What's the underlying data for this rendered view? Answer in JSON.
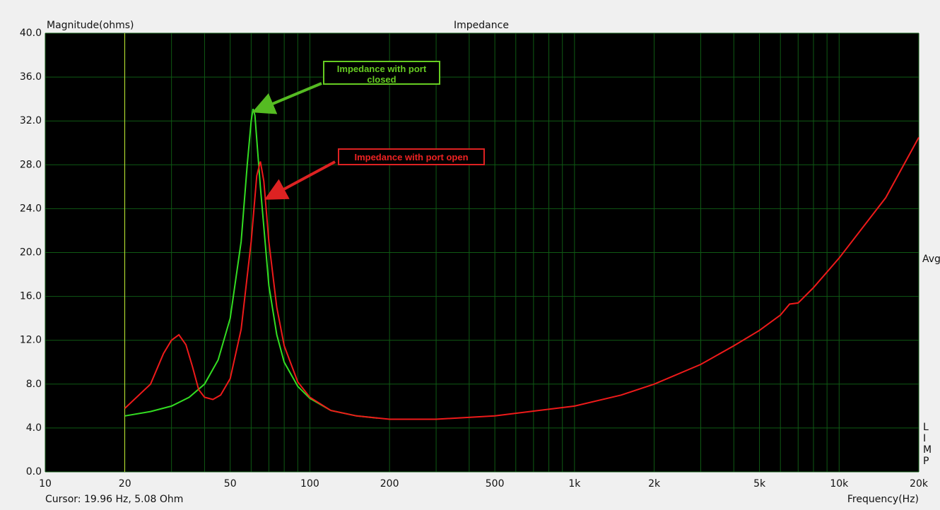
{
  "chart_data": {
    "type": "line",
    "title": "Impedance",
    "ylabel": "Magnitude(ohms)",
    "xlabel": "Frequency(Hz)",
    "cursor_text": "Cursor: 19.96 Hz, 5.08 Ohm",
    "cursor_x": 19.96,
    "cursor_color": "#c8e632",
    "side_text": "Avg",
    "side_letters": [
      "L",
      "I",
      "M",
      "P"
    ],
    "xscale": "log",
    "grid": true,
    "grid_color": "#0f5a14",
    "xlim": [
      10,
      20000
    ],
    "ylim": [
      0,
      40
    ],
    "xticks": [
      10,
      20,
      50,
      100,
      200,
      500,
      {
        "value": 1000,
        "label": "1k"
      },
      {
        "value": 2000,
        "label": "2k"
      },
      {
        "value": 5000,
        "label": "5k"
      },
      {
        "value": 10000,
        "label": "10k"
      },
      {
        "value": 20000,
        "label": "20k"
      }
    ],
    "x_minor_ticks": [
      30,
      40,
      60,
      70,
      80,
      90,
      300,
      400,
      600,
      700,
      800,
      900,
      3000,
      4000,
      6000,
      7000,
      8000,
      9000
    ],
    "yticks": [
      {
        "value": 0,
        "label": "0.0"
      },
      {
        "value": 4,
        "label": "4.0"
      },
      {
        "value": 8,
        "label": "8.0"
      },
      {
        "value": 12,
        "label": "12.0"
      },
      {
        "value": 16,
        "label": "16.0"
      },
      {
        "value": 20,
        "label": "20.0"
      },
      {
        "value": 24,
        "label": "24.0"
      },
      {
        "value": 28,
        "label": "28.0"
      },
      {
        "value": 32,
        "label": "32.0"
      },
      {
        "value": 36,
        "label": "36.0"
      },
      {
        "value": 40,
        "label": "40.0"
      }
    ],
    "series": [
      {
        "name": "Impedance with port closed",
        "color": "#33dd22",
        "x": [
          20,
          25,
          30,
          35,
          40,
          45,
          50,
          55,
          58,
          60,
          61,
          62,
          65,
          70,
          75,
          80,
          90,
          100,
          120,
          150,
          180
        ],
        "values": [
          5.1,
          5.5,
          6.0,
          6.8,
          8.0,
          10.2,
          14,
          21,
          28,
          32,
          33.1,
          32.5,
          26,
          17,
          12.5,
          10.0,
          7.8,
          6.7,
          5.6,
          5.1,
          4.9
        ]
      },
      {
        "name": "Impedance with port open",
        "color": "#ee1a1a",
        "x": [
          20,
          25,
          28,
          30,
          32,
          34,
          36,
          38,
          40,
          43,
          46,
          50,
          55,
          60,
          63,
          65,
          67,
          70,
          75,
          80,
          90,
          100,
          120,
          150,
          200,
          300,
          500,
          1000,
          1500,
          2000,
          3000,
          4000,
          5000,
          6000,
          6500,
          7000,
          8000,
          10000,
          15000,
          20000
        ],
        "values": [
          5.8,
          8.0,
          10.8,
          12.0,
          12.5,
          11.6,
          9.6,
          7.5,
          6.8,
          6.6,
          7.0,
          8.5,
          13,
          21,
          27,
          28.3,
          26.5,
          21,
          15,
          11.5,
          8.2,
          6.8,
          5.6,
          5.1,
          4.8,
          4.8,
          5.1,
          6.0,
          7.0,
          8.0,
          9.8,
          11.5,
          12.9,
          14.3,
          15.3,
          15.4,
          16.8,
          19.5,
          25.0,
          30.5
        ]
      }
    ]
  }
}
